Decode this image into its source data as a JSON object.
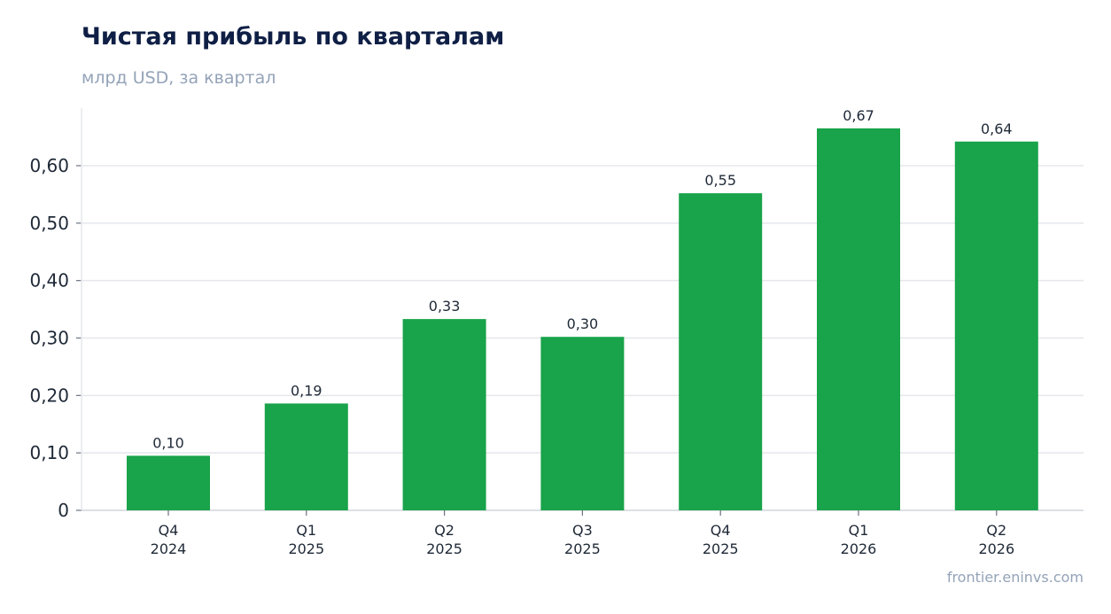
{
  "title": "Чистая прибыль по кварталам",
  "subtitle": "млрд USD, за квартал",
  "source": "frontier.eninvs.com",
  "colors": {
    "bar": "#19a34a",
    "grid": "#e5e7eb",
    "axis": "#d1d5db"
  },
  "chart_data": {
    "type": "bar",
    "categories": [
      [
        "Q4",
        "2024"
      ],
      [
        "Q1",
        "2025"
      ],
      [
        "Q2",
        "2025"
      ],
      [
        "Q3",
        "2025"
      ],
      [
        "Q4",
        "2025"
      ],
      [
        "Q1",
        "2026"
      ],
      [
        "Q2",
        "2026"
      ]
    ],
    "values": [
      0.095,
      0.186,
      0.333,
      0.302,
      0.552,
      0.665,
      0.642
    ],
    "value_labels": [
      "0,10",
      "0,19",
      "0,33",
      "0,30",
      "0,55",
      "0,67",
      "0,64"
    ],
    "ylim": [
      0,
      0.7
    ],
    "yticks": [
      0,
      0.1,
      0.2,
      0.3,
      0.4,
      0.5,
      0.6
    ],
    "ytick_labels": [
      "0",
      "0,10",
      "0,20",
      "0,30",
      "0,40",
      "0,50",
      "0,60"
    ],
    "grid": true,
    "legend": "none"
  }
}
